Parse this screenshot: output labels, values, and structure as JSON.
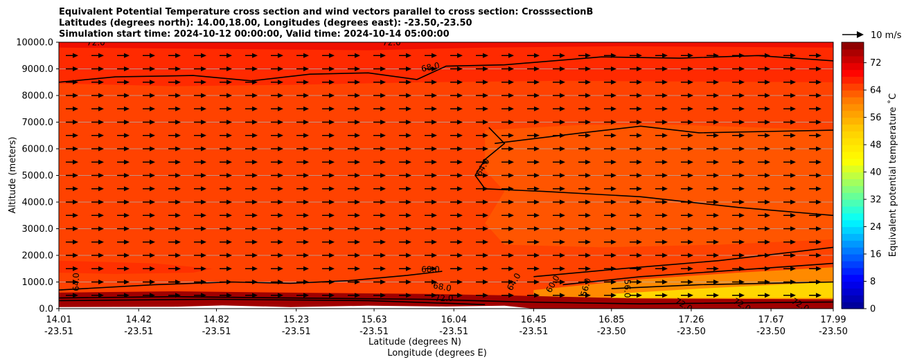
{
  "chart_data": {
    "type": "heatmap",
    "title_lines": [
      "Equivalent Potential Temperature cross section and wind vectors parallel to cross section: CrosssectionB",
      "Latitudes (degrees north): 14.00,18.00, Longitudes (degrees east): -23.50,-23.50",
      "Simulation start time: 2024-10-12 00:00:00, Valid time: 2024-10-14 05:00:00"
    ],
    "ylabel": "Altitude (meters)",
    "xlabel_lat": "Latitude (degrees N)",
    "xlabel_lon": "Longitude (degrees E)",
    "ylim": [
      0,
      10000
    ],
    "y_ticks": [
      0,
      1000,
      2000,
      3000,
      4000,
      5000,
      6000,
      7000,
      8000,
      9000,
      10000
    ],
    "y_tick_labels": [
      "0.0",
      "1000.0",
      "2000.0",
      "3000.0",
      "4000.0",
      "5000.0",
      "6000.0",
      "7000.0",
      "8000.0",
      "9000.0",
      "10000.0"
    ],
    "x_range": [
      14.01,
      17.99
    ],
    "x_ticks": [
      {
        "lat": "14.01",
        "lon": "-23.51"
      },
      {
        "lat": "14.42",
        "lon": "-23.51"
      },
      {
        "lat": "14.82",
        "lon": "-23.51"
      },
      {
        "lat": "15.23",
        "lon": "-23.51"
      },
      {
        "lat": "15.63",
        "lon": "-23.51"
      },
      {
        "lat": "16.04",
        "lon": "-23.51"
      },
      {
        "lat": "16.45",
        "lon": "-23.51"
      },
      {
        "lat": "16.85",
        "lon": "-23.50"
      },
      {
        "lat": "17.26",
        "lon": "-23.50"
      },
      {
        "lat": "17.67",
        "lon": "-23.50"
      },
      {
        "lat": "17.99",
        "lon": "-23.50"
      }
    ],
    "colorbar": {
      "label": "Equivalent potential temperature ˚C",
      "range": [
        0,
        78
      ],
      "ticks": [
        "0",
        "8",
        "16",
        "24",
        "32",
        "40",
        "48",
        "56",
        "64",
        "72"
      ],
      "colors": [
        "#00008f",
        "#0000ff",
        "#0080ff",
        "#00ffff",
        "#80ff80",
        "#ffff00",
        "#ffd000",
        "#ff8000",
        "#ff0000",
        "#800000"
      ]
    },
    "quiver_key": "10 m/s",
    "fill_regions": [
      {
        "name": "background",
        "color": "#ff4200"
      },
      {
        "name": "upper-band",
        "color": "#ff2a00"
      },
      {
        "name": "top-band",
        "color": "#f01000"
      },
      {
        "name": "mid-band",
        "color": "#ff5500"
      },
      {
        "name": "low-left-band",
        "color": "#ff3000"
      },
      {
        "name": "low-right-orange",
        "color": "#ff8a00"
      },
      {
        "name": "low-right-yellow",
        "color": "#ffd600"
      },
      {
        "name": "surface-band",
        "color": "#a00000"
      }
    ],
    "contour_labels": [
      {
        "text": "68.0",
        "lat": 15.92,
        "alt": 9050,
        "angle": -12
      },
      {
        "text": "64.0",
        "lat": 16.19,
        "alt": 5300,
        "angle": -60
      },
      {
        "text": "68.0",
        "lat": 15.92,
        "alt": 1450,
        "angle": 0
      },
      {
        "text": "68.0",
        "lat": 15.98,
        "alt": 800,
        "angle": 10
      },
      {
        "text": "72.0",
        "lat": 15.99,
        "alt": 380,
        "angle": 0
      },
      {
        "text": "64.0",
        "lat": 14.1,
        "alt": 1000,
        "angle": -90
      },
      {
        "text": "64.0",
        "lat": 16.35,
        "alt": 1000,
        "angle": -60
      },
      {
        "text": "60.0",
        "lat": 16.55,
        "alt": 920,
        "angle": -60
      },
      {
        "text": "56.0",
        "lat": 16.72,
        "alt": 800,
        "angle": -75
      },
      {
        "text": "56.0",
        "lat": 16.93,
        "alt": 750,
        "angle": 90
      },
      {
        "text": "72.0",
        "lat": 17.22,
        "alt": 130,
        "angle": 30
      },
      {
        "text": "72.0",
        "lat": 17.52,
        "alt": 130,
        "angle": 30
      },
      {
        "text": "72.0",
        "lat": 17.82,
        "alt": 130,
        "angle": 30
      },
      {
        "text": "72.0",
        "lat": 14.2,
        "alt": 9980,
        "angle": 0
      },
      {
        "text": "72.0",
        "lat": 15.72,
        "alt": 9980,
        "angle": 0
      }
    ]
  }
}
